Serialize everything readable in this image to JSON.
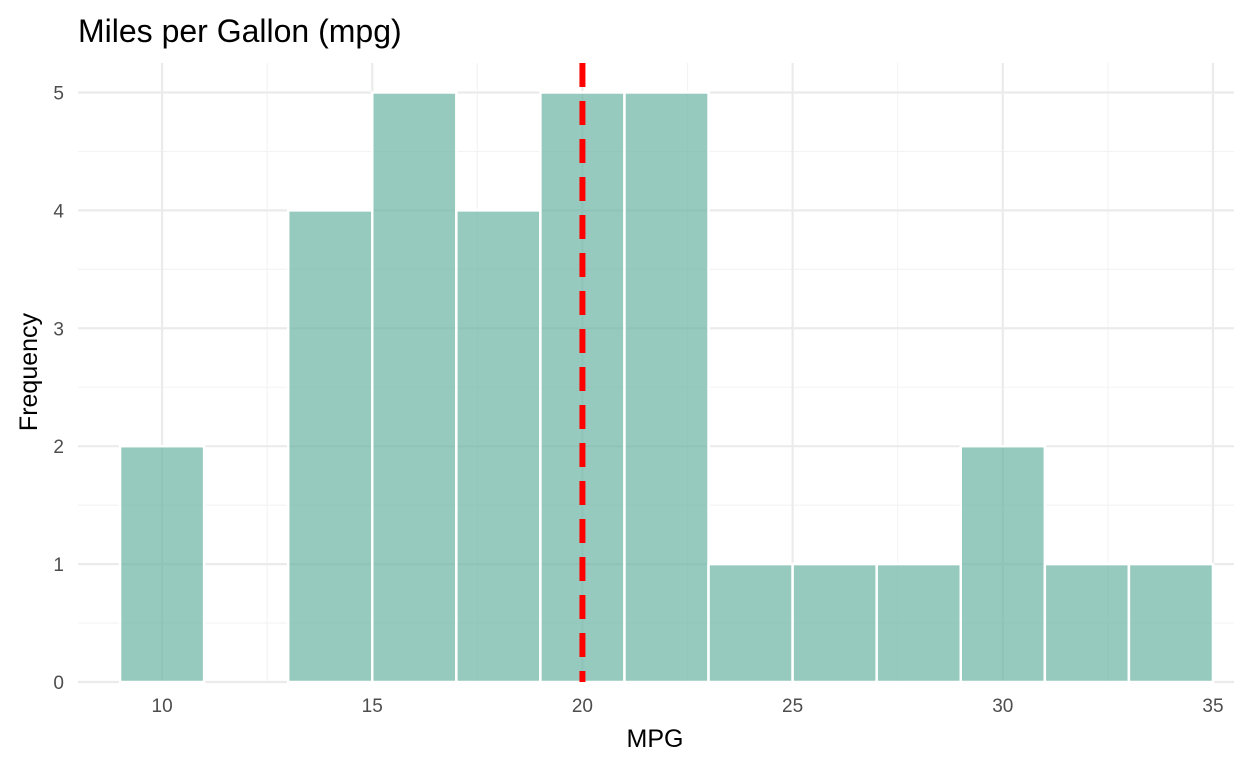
{
  "chart_data": {
    "type": "bar",
    "title": "Miles per Gallon (mpg)",
    "xlabel": "MPG",
    "ylabel": "Frequency",
    "bin_width": 2,
    "bins": [
      {
        "x0": 9,
        "x1": 11,
        "count": 2
      },
      {
        "x0": 11,
        "x1": 13,
        "count": 0
      },
      {
        "x0": 13,
        "x1": 15,
        "count": 4
      },
      {
        "x0": 15,
        "x1": 17,
        "count": 5
      },
      {
        "x0": 17,
        "x1": 19,
        "count": 4
      },
      {
        "x0": 19,
        "x1": 21,
        "count": 5
      },
      {
        "x0": 21,
        "x1": 23,
        "count": 5
      },
      {
        "x0": 23,
        "x1": 25,
        "count": 1
      },
      {
        "x0": 25,
        "x1": 27,
        "count": 1
      },
      {
        "x0": 27,
        "x1": 29,
        "count": 1
      },
      {
        "x0": 29,
        "x1": 31,
        "count": 2
      },
      {
        "x0": 31,
        "x1": 33,
        "count": 1
      },
      {
        "x0": 33,
        "x1": 35,
        "count": 1
      }
    ],
    "xlim": [
      8,
      35.5
    ],
    "ylim": [
      0,
      5.25
    ],
    "x_ticks": [
      "10",
      "15",
      "20",
      "25",
      "30",
      "35"
    ],
    "y_ticks": [
      "0",
      "1",
      "2",
      "3",
      "4",
      "5"
    ],
    "reference_line": {
      "x": 20,
      "style": "dashed",
      "color": "#ff0000"
    },
    "bar_color": "#69b3a2",
    "bar_opacity": 0.7,
    "grid": true,
    "legend": "none"
  }
}
